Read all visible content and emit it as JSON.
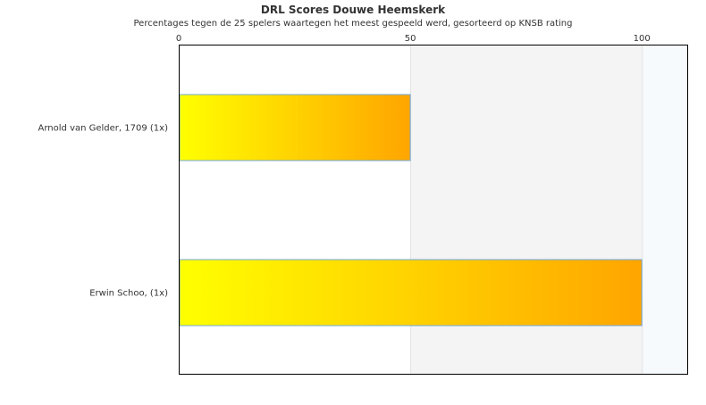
{
  "chart_data": {
    "type": "bar",
    "orientation": "horizontal",
    "title": "DRL Scores Douwe Heemskerk",
    "subtitle": "Percentages tegen de 25 spelers waartegen het meest gespeeld werd, gesorteerd op KNSB rating",
    "categories": [
      "Arnold van Gelder, 1709 (1x)",
      "Erwin Schoo,  (1x)"
    ],
    "values": [
      50,
      100
    ],
    "xlim": [
      0,
      110
    ],
    "xticks": [
      0,
      50,
      100
    ],
    "x_axis_position": "top",
    "bands": [
      {
        "from": 0,
        "to": 50,
        "color": "#ffffff"
      },
      {
        "from": 50,
        "to": 100,
        "color": "#f4f4f4"
      },
      {
        "from": 100,
        "to": 110,
        "color": "#f7fafd"
      }
    ],
    "bar_gradient": [
      "#ffff00",
      "#ffa500"
    ],
    "bar_border": "#6fa8dc"
  }
}
